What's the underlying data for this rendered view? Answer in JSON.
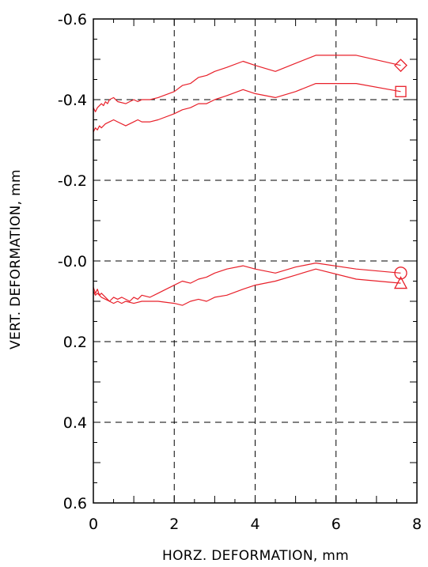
{
  "chart_data": {
    "type": "line",
    "title": "",
    "xlabel": "HORZ. DEFORMATION, mm",
    "ylabel": "VERT. DEFORMATION, mm",
    "xlim": [
      0,
      8
    ],
    "ylim": [
      -0.6,
      0.6
    ],
    "y_inverted": true,
    "x_ticks": [
      0,
      2,
      4,
      6,
      8
    ],
    "x_tick_labels": [
      "0",
      "2",
      "4",
      "6",
      "8"
    ],
    "y_ticks": [
      -0.6,
      -0.4,
      -0.2,
      0.0,
      0.2,
      0.4,
      0.6
    ],
    "y_tick_labels": [
      "-0.6",
      "-0.4",
      "-0.2",
      "-0.0",
      "0.2",
      "0.4",
      "0.6"
    ],
    "grid": true,
    "legend": "none",
    "line_color": "#e8202a",
    "series": [
      {
        "marker": "diamond",
        "x": [
          0,
          0.05,
          0.1,
          0.15,
          0.2,
          0.25,
          0.3,
          0.35,
          0.4,
          0.5,
          0.6,
          0.8,
          0.9,
          1.0,
          1.1,
          1.2,
          1.4,
          1.6,
          2.0,
          2.2,
          2.4,
          2.6,
          2.8,
          3.0,
          3.3,
          3.7,
          4.0,
          4.5,
          5.0,
          5.5,
          6.5,
          7.6
        ],
        "y": [
          -0.38,
          -0.37,
          -0.38,
          -0.385,
          -0.39,
          -0.385,
          -0.395,
          -0.39,
          -0.4,
          -0.405,
          -0.395,
          -0.39,
          -0.395,
          -0.4,
          -0.395,
          -0.4,
          -0.4,
          -0.405,
          -0.42,
          -0.435,
          -0.44,
          -0.455,
          -0.46,
          -0.47,
          -0.48,
          -0.495,
          -0.485,
          -0.47,
          -0.49,
          -0.51,
          -0.51,
          -0.485
        ]
      },
      {
        "marker": "square",
        "x": [
          0,
          0.05,
          0.1,
          0.15,
          0.2,
          0.3,
          0.4,
          0.5,
          0.6,
          0.8,
          0.9,
          1.0,
          1.1,
          1.2,
          1.4,
          1.6,
          2.0,
          2.2,
          2.4,
          2.6,
          2.8,
          3.0,
          3.3,
          3.7,
          4.0,
          4.5,
          5.0,
          5.5,
          6.5,
          7.6
        ],
        "y": [
          -0.32,
          -0.33,
          -0.325,
          -0.335,
          -0.33,
          -0.34,
          -0.345,
          -0.35,
          -0.345,
          -0.335,
          -0.34,
          -0.345,
          -0.35,
          -0.345,
          -0.345,
          -0.35,
          -0.365,
          -0.375,
          -0.38,
          -0.39,
          -0.39,
          -0.4,
          -0.41,
          -0.425,
          -0.415,
          -0.405,
          -0.42,
          -0.44,
          -0.44,
          -0.42
        ]
      },
      {
        "marker": "circle",
        "x": [
          0,
          0.05,
          0.1,
          0.15,
          0.2,
          0.3,
          0.4,
          0.5,
          0.6,
          0.7,
          0.9,
          1.0,
          1.1,
          1.2,
          1.4,
          1.6,
          1.8,
          2.0,
          2.2,
          2.4,
          2.6,
          2.8,
          3.0,
          3.3,
          3.7,
          4.0,
          4.5,
          5.0,
          5.5,
          6.5,
          7.6
        ],
        "y": [
          0.065,
          0.08,
          0.07,
          0.085,
          0.08,
          0.09,
          0.1,
          0.09,
          0.095,
          0.09,
          0.1,
          0.09,
          0.095,
          0.085,
          0.09,
          0.08,
          0.07,
          0.06,
          0.05,
          0.055,
          0.045,
          0.04,
          0.03,
          0.02,
          0.012,
          0.02,
          0.03,
          0.015,
          0.005,
          0.02,
          0.03
        ]
      },
      {
        "marker": "triangle",
        "x": [
          0,
          0.05,
          0.1,
          0.2,
          0.3,
          0.4,
          0.5,
          0.6,
          0.7,
          0.8,
          1.0,
          1.2,
          1.4,
          1.6,
          2.0,
          2.2,
          2.4,
          2.6,
          2.8,
          3.0,
          3.3,
          3.7,
          4.0,
          4.5,
          5.0,
          5.5,
          6.5,
          7.6
        ],
        "y": [
          0.075,
          0.085,
          0.08,
          0.09,
          0.095,
          0.1,
          0.105,
          0.1,
          0.105,
          0.1,
          0.105,
          0.1,
          0.1,
          0.1,
          0.105,
          0.11,
          0.1,
          0.095,
          0.1,
          0.09,
          0.085,
          0.07,
          0.06,
          0.05,
          0.035,
          0.02,
          0.045,
          0.055
        ]
      }
    ]
  }
}
